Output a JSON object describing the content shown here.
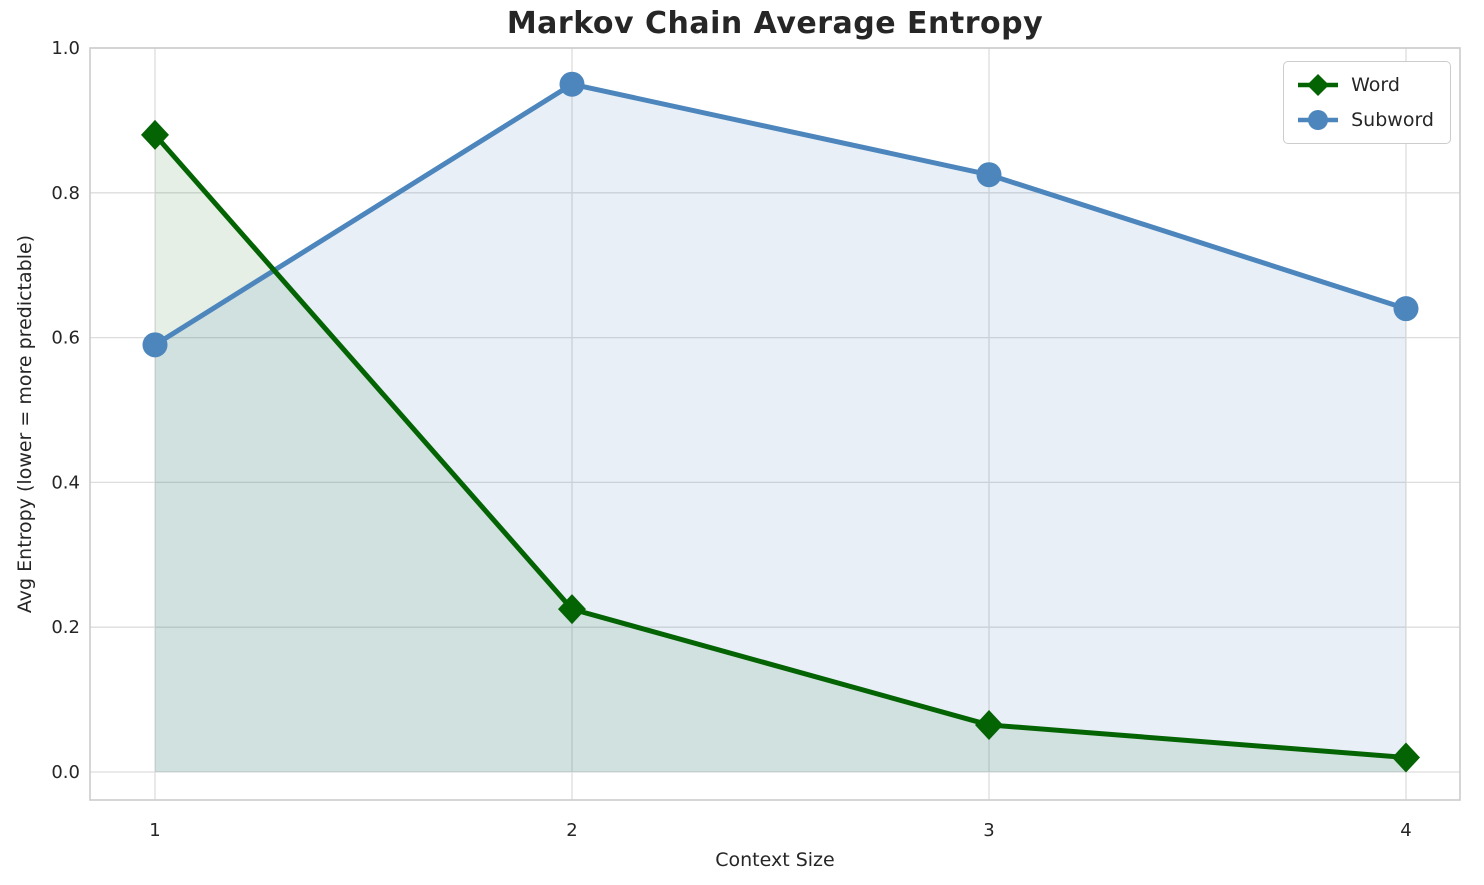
{
  "chart_data": {
    "type": "line",
    "title": "Markov Chain Average Entropy",
    "xlabel": "Context Size",
    "ylabel": "Avg Entropy (lower = more predictable)",
    "x": [
      1,
      2,
      3,
      4
    ],
    "xticks": [
      "1",
      "2",
      "3",
      "4"
    ],
    "yticks": [
      0.0,
      0.2,
      0.4,
      0.6,
      0.8,
      1.0
    ],
    "ylim": [
      0.0,
      1.0
    ],
    "grid": true,
    "legend_position": "upper right",
    "series": [
      {
        "name": "Word",
        "values": [
          0.88,
          0.225,
          0.065,
          0.02
        ],
        "color": "#046404",
        "fill": "rgba(4,100,4,0.10)",
        "marker": "diamond"
      },
      {
        "name": "Subword",
        "values": [
          0.59,
          0.95,
          0.825,
          0.64
        ],
        "color": "#4d86bd",
        "fill": "rgba(77,134,189,0.13)",
        "marker": "circle"
      }
    ],
    "colors": {
      "grid": "#dddddd",
      "border": "#cccccc",
      "text": "#262626",
      "plot_background": "#ffffff"
    }
  }
}
